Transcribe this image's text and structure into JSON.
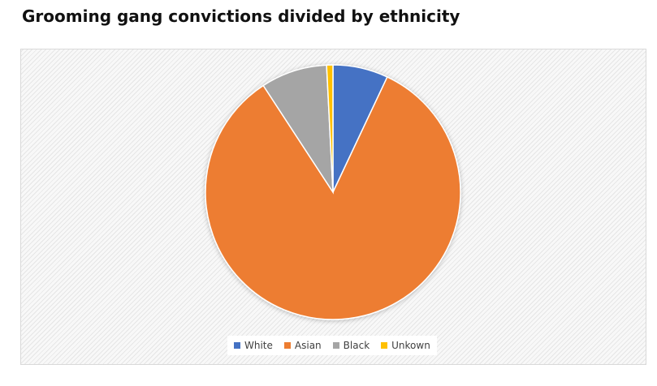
{
  "chart_data": {
    "type": "pie",
    "title": "Grooming gang convictions divided by ethnicity",
    "legend_position": "bottom",
    "slices": [
      {
        "label": "White",
        "value": 7.0,
        "color": "#4472c4"
      },
      {
        "label": "Asian",
        "value": 83.8,
        "color": "#ed7d31"
      },
      {
        "label": "Black",
        "value": 8.4,
        "color": "#a5a5a5"
      },
      {
        "label": "Unkown",
        "value": 0.8,
        "color": "#ffc000"
      }
    ]
  }
}
